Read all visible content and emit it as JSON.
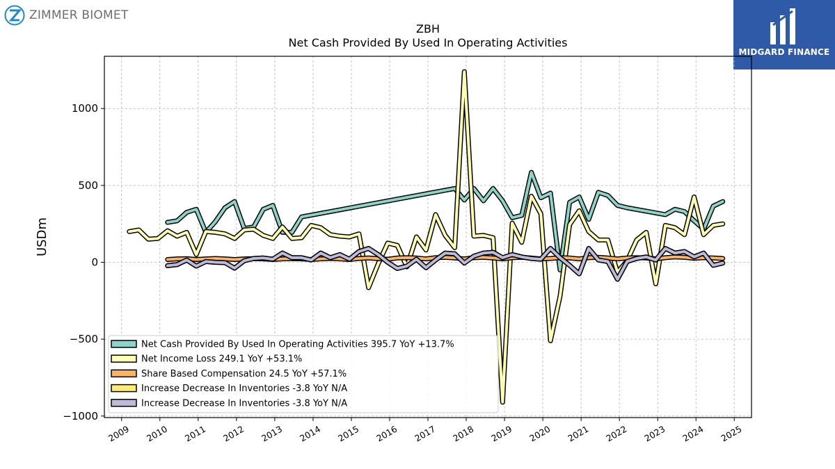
{
  "branding": {
    "left_name": "ZIMMER BIOMET",
    "right_name": "MIDGARD FINANCE",
    "right_bg": "#2e5aa8",
    "left_accent": "#1e88c8"
  },
  "chart_data": {
    "type": "line",
    "title": "ZBH",
    "subtitle": "Net Cash Provided By Used In Operating Activities",
    "xlabel": "",
    "ylabel": "USDm",
    "xlim": [
      2008.55,
      2025.45
    ],
    "ylim": [
      -1010,
      1340
    ],
    "x_ticks": [
      "2009",
      "2010",
      "2011",
      "2012",
      "2013",
      "2014",
      "2015",
      "2016",
      "2017",
      "2018",
      "2019",
      "2020",
      "2021",
      "2022",
      "2023",
      "2024",
      "2025"
    ],
    "y_ticks": [
      -1000,
      -500,
      0,
      500,
      1000
    ],
    "y_tick_labels": [
      "−1000",
      "−500",
      "0",
      "500",
      "1000"
    ],
    "grid": true,
    "legend_position": "lower-left",
    "series": [
      {
        "name": "Net Cash Provided By Used In Operating Activities  395.7 YoY +13.7%",
        "color": "#8dd3c7",
        "points": [
          [
            2010.2,
            260
          ],
          [
            2010.45,
            270
          ],
          [
            2010.7,
            325
          ],
          [
            2010.95,
            345
          ],
          [
            2011.2,
            195
          ],
          [
            2011.45,
            265
          ],
          [
            2011.7,
            355
          ],
          [
            2011.95,
            395
          ],
          [
            2012.2,
            220
          ],
          [
            2012.45,
            230
          ],
          [
            2012.7,
            345
          ],
          [
            2012.95,
            370
          ],
          [
            2013.2,
            195
          ],
          [
            2013.45,
            195
          ],
          [
            2013.7,
            295
          ],
          [
            2017.7,
            480
          ],
          [
            2017.95,
            405
          ],
          [
            2018.2,
            480
          ],
          [
            2018.45,
            400
          ],
          [
            2018.7,
            480
          ],
          [
            2018.95,
            400
          ],
          [
            2019.2,
            290
          ],
          [
            2019.45,
            305
          ],
          [
            2019.7,
            585
          ],
          [
            2019.95,
            420
          ],
          [
            2020.2,
            450
          ],
          [
            2020.45,
            -50
          ],
          [
            2020.7,
            390
          ],
          [
            2020.95,
            425
          ],
          [
            2021.2,
            280
          ],
          [
            2021.45,
            455
          ],
          [
            2021.7,
            435
          ],
          [
            2021.95,
            370
          ],
          [
            2022.2,
            355
          ],
          [
            2023.2,
            310
          ],
          [
            2023.45,
            345
          ],
          [
            2023.7,
            330
          ],
          [
            2023.95,
            270
          ],
          [
            2024.2,
            215
          ],
          [
            2024.45,
            365
          ],
          [
            2024.7,
            395
          ]
        ]
      },
      {
        "name": "Net Income Loss  249.1 YoY +53.1%",
        "color": "#ffffb3",
        "points": [
          [
            2009.2,
            200
          ],
          [
            2009.45,
            210
          ],
          [
            2009.7,
            150
          ],
          [
            2009.95,
            155
          ],
          [
            2010.2,
            205
          ],
          [
            2010.45,
            170
          ],
          [
            2010.7,
            195
          ],
          [
            2010.95,
            50
          ],
          [
            2011.2,
            200
          ],
          [
            2011.45,
            195
          ],
          [
            2011.7,
            185
          ],
          [
            2011.95,
            155
          ],
          [
            2012.2,
            210
          ],
          [
            2012.45,
            215
          ],
          [
            2012.7,
            175
          ],
          [
            2012.95,
            155
          ],
          [
            2013.2,
            230
          ],
          [
            2013.45,
            155
          ],
          [
            2013.7,
            160
          ],
          [
            2013.95,
            240
          ],
          [
            2014.2,
            225
          ],
          [
            2014.45,
            180
          ],
          [
            2014.7,
            170
          ],
          [
            2014.95,
            165
          ],
          [
            2015.2,
            185
          ],
          [
            2015.45,
            -165
          ],
          [
            2015.7,
            -10
          ],
          [
            2015.95,
            125
          ],
          [
            2016.2,
            110
          ],
          [
            2016.45,
            -30
          ],
          [
            2016.7,
            165
          ],
          [
            2016.95,
            80
          ],
          [
            2017.2,
            310
          ],
          [
            2017.45,
            175
          ],
          [
            2017.7,
            95
          ],
          [
            2017.95,
            1240
          ],
          [
            2018.2,
            170
          ],
          [
            2018.45,
            175
          ],
          [
            2018.7,
            160
          ],
          [
            2018.95,
            -910
          ],
          [
            2019.2,
            255
          ],
          [
            2019.45,
            130
          ],
          [
            2019.7,
            430
          ],
          [
            2019.95,
            315
          ],
          [
            2020.2,
            -510
          ],
          [
            2020.45,
            -220
          ],
          [
            2020.7,
            245
          ],
          [
            2020.95,
            335
          ],
          [
            2021.2,
            200
          ],
          [
            2021.45,
            145
          ],
          [
            2021.7,
            145
          ],
          [
            2021.95,
            -65
          ],
          [
            2022.2,
            10
          ],
          [
            2022.45,
            145
          ],
          [
            2022.7,
            195
          ],
          [
            2022.95,
            -140
          ],
          [
            2023.2,
            240
          ],
          [
            2023.45,
            225
          ],
          [
            2023.7,
            180
          ],
          [
            2023.95,
            425
          ],
          [
            2024.2,
            180
          ],
          [
            2024.45,
            240
          ],
          [
            2024.7,
            250
          ]
        ]
      },
      {
        "name": "Share Based Compensation  24.5 YoY +57.1%",
        "color": "#fdb462",
        "points": [
          [
            2010.2,
            18
          ],
          [
            2010.45,
            22
          ],
          [
            2010.7,
            24
          ],
          [
            2010.95,
            18
          ],
          [
            2011.2,
            22
          ],
          [
            2011.45,
            25
          ],
          [
            2011.7,
            22
          ],
          [
            2011.95,
            18
          ],
          [
            2012.2,
            22
          ],
          [
            2012.45,
            24
          ],
          [
            2012.7,
            22
          ],
          [
            2012.95,
            18
          ],
          [
            2013.2,
            22
          ],
          [
            2013.45,
            24
          ],
          [
            2013.7,
            22
          ],
          [
            2013.95,
            18
          ],
          [
            2014.2,
            22
          ],
          [
            2014.45,
            25
          ],
          [
            2014.7,
            22
          ],
          [
            2014.95,
            18
          ],
          [
            2015.2,
            25
          ],
          [
            2015.45,
            28
          ],
          [
            2015.7,
            24
          ],
          [
            2015.95,
            20
          ],
          [
            2016.2,
            28
          ],
          [
            2016.45,
            30
          ],
          [
            2016.7,
            28
          ],
          [
            2016.95,
            22
          ],
          [
            2017.2,
            30
          ],
          [
            2017.45,
            32
          ],
          [
            2017.7,
            28
          ],
          [
            2017.95,
            22
          ],
          [
            2018.2,
            30
          ],
          [
            2018.45,
            32
          ],
          [
            2018.7,
            28
          ],
          [
            2018.95,
            22
          ],
          [
            2019.2,
            30
          ],
          [
            2019.45,
            32
          ],
          [
            2019.7,
            28
          ],
          [
            2019.95,
            22
          ],
          [
            2020.2,
            25
          ],
          [
            2020.45,
            30
          ],
          [
            2020.7,
            28
          ],
          [
            2020.95,
            22
          ],
          [
            2021.2,
            30
          ],
          [
            2021.45,
            32
          ],
          [
            2021.7,
            28
          ],
          [
            2021.95,
            22
          ],
          [
            2022.2,
            28
          ],
          [
            2022.45,
            30
          ],
          [
            2022.7,
            28
          ],
          [
            2022.95,
            22
          ],
          [
            2023.2,
            30
          ],
          [
            2023.45,
            35
          ],
          [
            2023.7,
            32
          ],
          [
            2023.95,
            26
          ],
          [
            2024.2,
            30
          ],
          [
            2024.45,
            28
          ],
          [
            2024.7,
            25
          ]
        ]
      },
      {
        "name": "Increase Decrease In Inventories  -3.8 YoY N/A",
        "color": "#ffed6f",
        "points": [
          [
            2010.2,
            -22
          ],
          [
            2010.45,
            -15
          ],
          [
            2010.7,
            15
          ],
          [
            2010.95,
            -25
          ],
          [
            2011.2,
            5
          ],
          [
            2011.45,
            0
          ],
          [
            2011.7,
            -2
          ],
          [
            2011.95,
            -38
          ],
          [
            2012.2,
            10
          ],
          [
            2012.45,
            25
          ],
          [
            2012.7,
            28
          ],
          [
            2012.95,
            20
          ],
          [
            2013.2,
            60
          ],
          [
            2013.45,
            30
          ],
          [
            2013.7,
            30
          ],
          [
            2013.95,
            15
          ],
          [
            2014.2,
            60
          ],
          [
            2014.45,
            30
          ],
          [
            2014.7,
            50
          ],
          [
            2014.95,
            20
          ],
          [
            2015.2,
            70
          ],
          [
            2015.45,
            90
          ],
          [
            2015.7,
            50
          ],
          [
            2015.95,
            0
          ],
          [
            2016.2,
            -40
          ],
          [
            2016.45,
            -25
          ],
          [
            2016.7,
            20
          ],
          [
            2016.95,
            -35
          ],
          [
            2017.2,
            15
          ],
          [
            2017.45,
            60
          ],
          [
            2017.7,
            55
          ],
          [
            2017.95,
            -5
          ],
          [
            2018.2,
            40
          ],
          [
            2018.45,
            60
          ],
          [
            2018.7,
            65
          ],
          [
            2018.95,
            30
          ],
          [
            2019.2,
            50
          ],
          [
            2019.45,
            35
          ],
          [
            2019.7,
            25
          ],
          [
            2019.95,
            20
          ],
          [
            2020.2,
            90
          ],
          [
            2020.45,
            30
          ],
          [
            2020.7,
            -20
          ],
          [
            2020.95,
            -75
          ],
          [
            2021.2,
            90
          ],
          [
            2021.45,
            15
          ],
          [
            2021.7,
            5
          ],
          [
            2021.95,
            -110
          ],
          [
            2022.2,
            5
          ],
          [
            2022.45,
            25
          ],
          [
            2022.7,
            35
          ],
          [
            2022.95,
            15
          ],
          [
            2023.2,
            90
          ],
          [
            2023.45,
            60
          ],
          [
            2023.7,
            70
          ],
          [
            2023.95,
            35
          ],
          [
            2024.2,
            60
          ],
          [
            2024.45,
            -20
          ],
          [
            2024.7,
            -5
          ]
        ]
      },
      {
        "name": "Increase Decrease In Inventories  -3.8 YoY N/A",
        "color": "#bebada",
        "points": [
          [
            2010.2,
            -22
          ],
          [
            2010.45,
            -15
          ],
          [
            2010.7,
            15
          ],
          [
            2010.95,
            -25
          ],
          [
            2011.2,
            5
          ],
          [
            2011.45,
            0
          ],
          [
            2011.7,
            -2
          ],
          [
            2011.95,
            -38
          ],
          [
            2012.2,
            10
          ],
          [
            2012.45,
            25
          ],
          [
            2012.7,
            28
          ],
          [
            2012.95,
            20
          ],
          [
            2013.2,
            60
          ],
          [
            2013.45,
            30
          ],
          [
            2013.7,
            30
          ],
          [
            2013.95,
            15
          ],
          [
            2014.2,
            60
          ],
          [
            2014.45,
            30
          ],
          [
            2014.7,
            50
          ],
          [
            2014.95,
            20
          ],
          [
            2015.2,
            70
          ],
          [
            2015.45,
            90
          ],
          [
            2015.7,
            50
          ],
          [
            2015.95,
            0
          ],
          [
            2016.2,
            -40
          ],
          [
            2016.45,
            -25
          ],
          [
            2016.7,
            20
          ],
          [
            2016.95,
            -35
          ],
          [
            2017.2,
            15
          ],
          [
            2017.45,
            60
          ],
          [
            2017.7,
            55
          ],
          [
            2017.95,
            -5
          ],
          [
            2018.2,
            40
          ],
          [
            2018.45,
            60
          ],
          [
            2018.7,
            65
          ],
          [
            2018.95,
            30
          ],
          [
            2019.2,
            50
          ],
          [
            2019.45,
            35
          ],
          [
            2019.7,
            25
          ],
          [
            2019.95,
            20
          ],
          [
            2020.2,
            90
          ],
          [
            2020.45,
            30
          ],
          [
            2020.7,
            -20
          ],
          [
            2020.95,
            -75
          ],
          [
            2021.2,
            90
          ],
          [
            2021.45,
            15
          ],
          [
            2021.7,
            5
          ],
          [
            2021.95,
            -110
          ],
          [
            2022.2,
            5
          ],
          [
            2022.45,
            25
          ],
          [
            2022.7,
            35
          ],
          [
            2022.95,
            15
          ],
          [
            2023.2,
            90
          ],
          [
            2023.45,
            60
          ],
          [
            2023.7,
            70
          ],
          [
            2023.95,
            35
          ],
          [
            2024.2,
            60
          ],
          [
            2024.45,
            -20
          ],
          [
            2024.7,
            -5
          ]
        ]
      }
    ]
  }
}
